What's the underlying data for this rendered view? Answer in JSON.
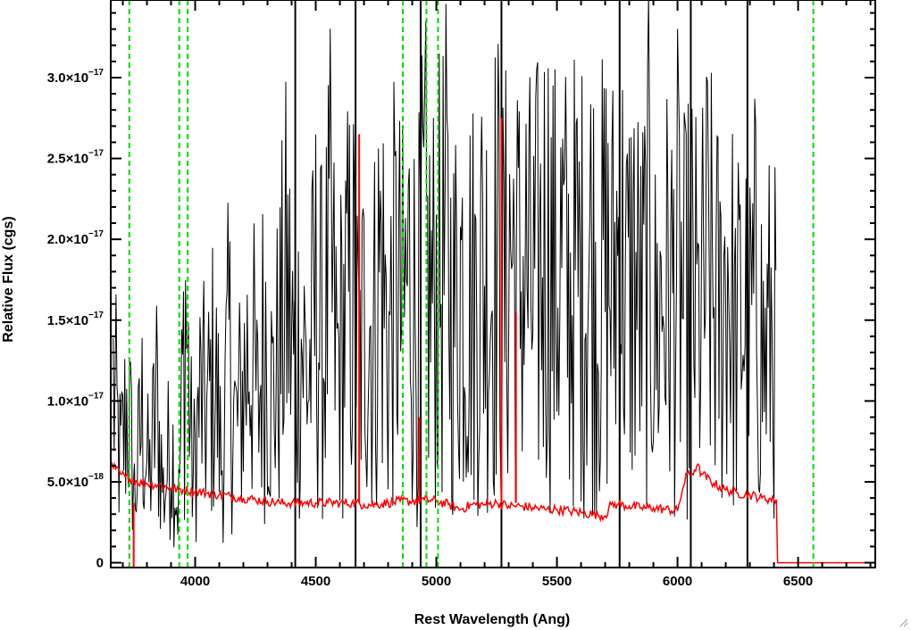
{
  "chart_data": {
    "type": "line",
    "title": "",
    "xlabel": "Rest Wavelength (Ang)",
    "ylabel": "Relative Flux (cgs)",
    "xlim": [
      3650,
      6820
    ],
    "ylim": [
      -3e-19,
      3.48e-17
    ],
    "x_ticks": [
      {
        "value": 4000,
        "label": "4000"
      },
      {
        "value": 4500,
        "label": "4500"
      },
      {
        "value": 5000,
        "label": "5000"
      },
      {
        "value": 5500,
        "label": "5500"
      },
      {
        "value": 6000,
        "label": "6000"
      },
      {
        "value": 6500,
        "label": "6500"
      }
    ],
    "y_ticks": [
      {
        "value": 0,
        "mant": "0",
        "exp": ""
      },
      {
        "value": 5e-18,
        "mant": "5.0×10",
        "exp": "−18"
      },
      {
        "value": 1e-17,
        "mant": "1.0×10",
        "exp": "−17"
      },
      {
        "value": 1.5e-17,
        "mant": "1.5×10",
        "exp": "−17"
      },
      {
        "value": 2e-17,
        "mant": "2.0×10",
        "exp": "−17"
      },
      {
        "value": 2.5e-17,
        "mant": "2.5×10",
        "exp": "−17"
      },
      {
        "value": 3e-17,
        "mant": "3.0×10",
        "exp": "−17"
      }
    ],
    "grid": false,
    "colors": {
      "flux": "#000000",
      "error": "#ff0000",
      "lines": "#00dd00"
    },
    "line_markers": [
      3727,
      3934,
      3969,
      4861,
      4959,
      5007,
      6563
    ],
    "series": [
      {
        "color": "#000000",
        "x": [
          3660,
          3690,
          3720,
          3750,
          3780,
          3810,
          3840,
          3870,
          3900,
          3930,
          3960,
          3990,
          4020,
          4050,
          4080,
          4110,
          4140,
          4170,
          4200,
          4230,
          4260,
          4290,
          4320,
          4350,
          4380,
          4410,
          4440,
          4470,
          4500,
          4530,
          4560,
          4590,
          4620,
          4650,
          4680,
          4710,
          4740,
          4770,
          4800,
          4830,
          4860,
          4890,
          4920,
          4950,
          4980,
          5010,
          5040,
          5070,
          5100,
          5130,
          5160,
          5190,
          5220,
          5250,
          5280,
          5310,
          5340,
          5370,
          5400,
          5430,
          5460,
          5490,
          5520,
          5550,
          5580,
          5610,
          5640,
          5670,
          5700,
          5730,
          5760,
          5790,
          5820,
          5850,
          5880,
          5910,
          5940,
          5970,
          6000,
          6030,
          6060,
          6090,
          6120,
          6150,
          6180,
          6210,
          6240,
          6270,
          6300,
          6330,
          6360,
          6390,
          6410
        ],
        "y": [
          1.1e-17,
          6e-18,
          1e-17,
          4e-18,
          9e-18,
          5e-18,
          1e-17,
          4e-18,
          8e-18,
          3e-18,
          1.6e-17,
          5e-18,
          1e-17,
          9e-18,
          1.2e-17,
          6e-18,
          1.3e-17,
          8e-18,
          1.1e-17,
          1.4e-17,
          9e-18,
          1.5e-17,
          1e-17,
          1.3e-17,
          1.7e-17,
          1.2e-17,
          1.4e-17,
          1.1e-17,
          1.6e-17,
          1.3e-17,
          1.8e-17,
          1.2e-17,
          1.5e-17,
          1.7e-17,
          1.2e-17,
          1.6e-17,
          1.4e-17,
          1.9e-17,
          1.3e-17,
          1.7e-17,
          1.5e-17,
          1.8e-17,
          1.4e-17,
          1.9e-17,
          1.6e-17,
          1.7e-17,
          1.9e-17,
          1.5e-17,
          1.8e-17,
          1.7e-17,
          1.6e-17,
          1.8e-17,
          1.7e-17,
          1.9e-17,
          1.6e-17,
          2e-17,
          1.7e-17,
          1.8e-17,
          1.6e-17,
          1.8e-17,
          2e-17,
          1.7e-17,
          1.9e-17,
          1.6e-17,
          1.8e-17,
          1.7e-17,
          1.9e-17,
          1.6e-17,
          1.8e-17,
          1.7e-17,
          2e-17,
          1.6e-17,
          1.8e-17,
          1.5e-17,
          1.9e-17,
          1.4e-17,
          1.7e-17,
          1.6e-17,
          1.8e-17,
          1.5e-17,
          1.7e-17,
          1.4e-17,
          1.8e-17,
          1.6e-17,
          1.5e-17,
          1.9e-17,
          1.3e-17,
          1.6e-17,
          1.4e-17,
          1.7e-17,
          1.2e-17,
          1.5e-17,
          1.3e-17
        ]
      },
      {
        "color": "#ff0000",
        "x": [
          3650,
          3670,
          3690,
          3710,
          3730,
          3760,
          3800,
          3850,
          3900,
          3950,
          4000,
          4050,
          4100,
          4150,
          4200,
          4250,
          4300,
          4350,
          4400,
          4450,
          4500,
          4550,
          4600,
          4650,
          4700,
          4750,
          4800,
          4850,
          4900,
          4950,
          5000,
          5050,
          5100,
          5150,
          5200,
          5250,
          5300,
          5350,
          5400,
          5450,
          5500,
          5550,
          5600,
          5650,
          5700,
          5725,
          5750,
          5800,
          5850,
          5900,
          5950,
          6000,
          6020,
          6040,
          6060,
          6080,
          6100,
          6150,
          6200,
          6250,
          6300,
          6350,
          6400,
          6410,
          6415,
          6500,
          6600,
          6700,
          6820
        ],
        "y": [
          6e-18,
          5.8e-18,
          5.5e-18,
          5.3e-18,
          5.2e-18,
          5e-18,
          4.9e-18,
          4.8e-18,
          4.6e-18,
          4.5e-18,
          4.4e-18,
          4.3e-18,
          4.2e-18,
          4.1e-18,
          4e-18,
          3.9e-18,
          3.8e-18,
          3.7e-18,
          3.7e-18,
          3.7e-18,
          3.7e-18,
          3.7e-18,
          3.7e-18,
          3.7e-18,
          3.6e-18,
          3.6e-18,
          3.7e-18,
          3.8e-18,
          3.8e-18,
          3.9e-18,
          3.8e-18,
          3.6e-18,
          3.3e-18,
          3.6e-18,
          3.6e-18,
          3.7e-18,
          3.5e-18,
          3.5e-18,
          3.4e-18,
          3.3e-18,
          3.3e-18,
          3.2e-18,
          3.1e-18,
          3e-18,
          2.9e-18,
          3.6e-18,
          3.6e-18,
          3.5e-18,
          3.4e-18,
          3.4e-18,
          3.3e-18,
          3.2e-18,
          4.5e-18,
          5.5e-18,
          5.5e-18,
          6e-18,
          5.5e-18,
          4.9e-18,
          4.5e-18,
          4.3e-18,
          4.2e-18,
          4e-18,
          3.9e-18,
          3.9e-18,
          0,
          0,
          0,
          0,
          0
        ]
      }
    ],
    "spikes": [
      {
        "x": 4680,
        "y": 2.65e-17,
        "color": "#ff0000"
      },
      {
        "x": 4930,
        "y": 9e-18,
        "color": "#ff0000"
      },
      {
        "x": 5270,
        "y": 2.75e-17,
        "color": "#ff0000"
      },
      {
        "x": 5330,
        "y": 1.55e-17,
        "color": "#ff0000"
      },
      {
        "x": 3745,
        "y": -3e-19,
        "color": "#ff0000"
      }
    ],
    "tall_lines": [
      4415,
      4665,
      4935,
      5270,
      5760,
      6055,
      6290
    ]
  }
}
